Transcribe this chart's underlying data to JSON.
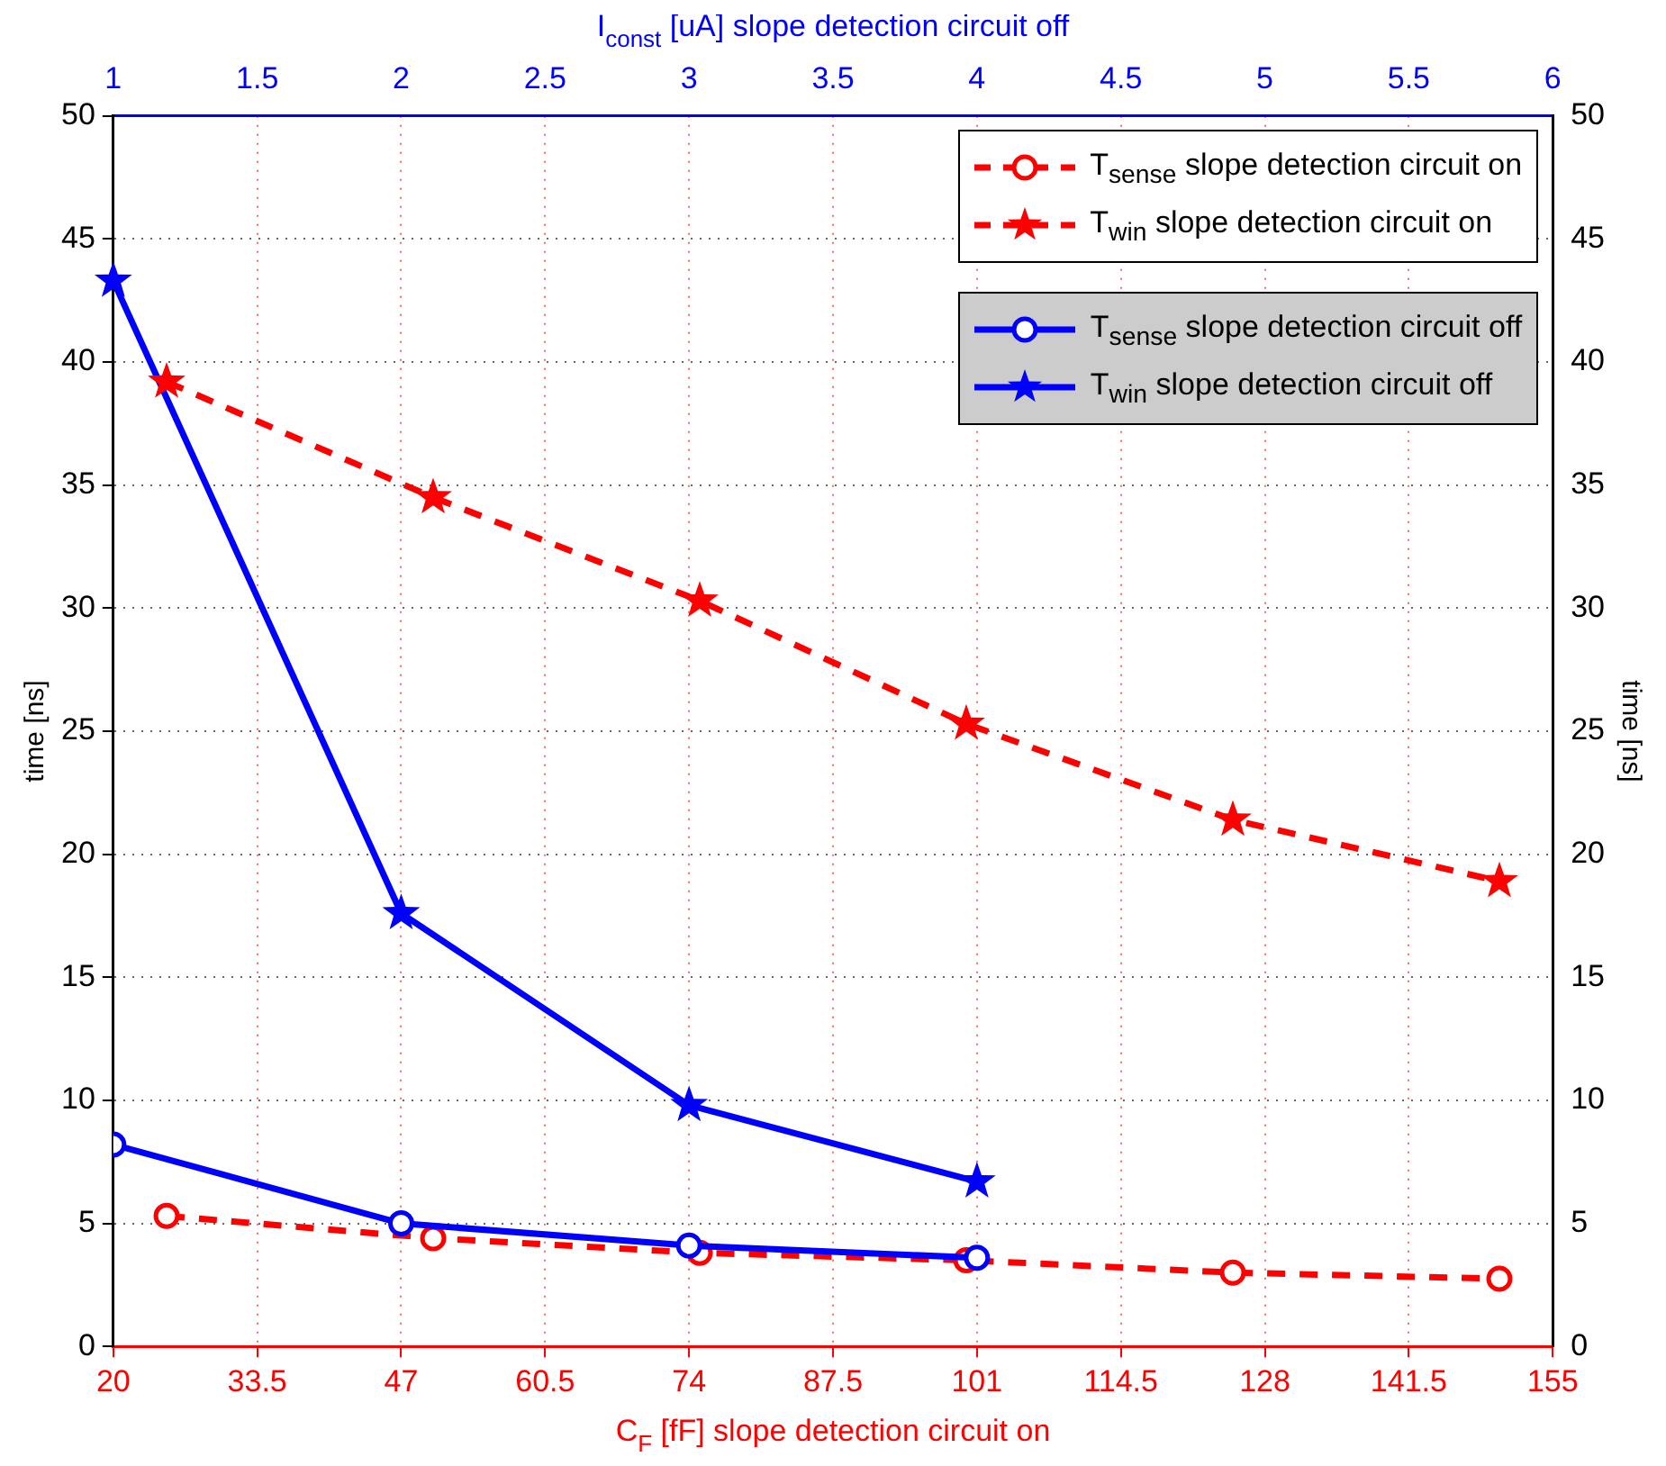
{
  "chart_data": {
    "type": "line",
    "xlabel": "C$_{F}$ [fF] slope detection circuit on",
    "x2label": "I$_{const}$ [uA] slope detection circuit off",
    "ylabel": "time [ns]",
    "y2label": "time [ns]",
    "xlim": [
      20,
      155
    ],
    "xticks": [
      20,
      33.5,
      47,
      60.5,
      74,
      87.5,
      101,
      114.5,
      128,
      141.5,
      155
    ],
    "x2lim": [
      1,
      6
    ],
    "x2ticks": [
      1,
      1.5,
      2,
      2.5,
      3,
      3.5,
      4,
      4.5,
      5,
      5.5,
      6
    ],
    "ylim": [
      0,
      50
    ],
    "yticks": [
      0,
      5,
      10,
      15,
      20,
      25,
      30,
      35,
      40,
      45,
      50
    ],
    "y2lim": [
      0,
      50
    ],
    "y2ticks": [
      0,
      5,
      10,
      15,
      20,
      25,
      30,
      35,
      40,
      45,
      50
    ],
    "grid": true,
    "legend": "top right",
    "series": [
      {
        "name": "T$_{sense}$ slope detection circuit on",
        "color": "#ff0000",
        "marker": "circle",
        "line_style": "dashed",
        "x": [
          25,
          50,
          75,
          100,
          125,
          150
        ],
        "values": [
          5.3,
          4.4,
          3.8,
          3.5,
          3.0,
          2.75
        ]
      },
      {
        "name": "T$_{win}$ slope detection circuit on",
        "color": "#ff0000",
        "marker": "star",
        "line_style": "dashed",
        "x": [
          25,
          50,
          75,
          100,
          125,
          150
        ],
        "values": [
          39.2,
          34.5,
          30.3,
          25.3,
          21.4,
          18.9
        ]
      },
      {
        "name": "T$_{sense}$ slope detection circuit off",
        "color": "#0000ff",
        "marker": "circle",
        "line_style": "solid",
        "axis": "x2",
        "x": [
          1,
          2,
          3,
          4
        ],
        "values": [
          8.2,
          5.0,
          4.1,
          3.6
        ]
      },
      {
        "name": "T$_{win}$ slope detection circuit off",
        "color": "#0000ff",
        "marker": "star",
        "line_style": "solid",
        "axis": "x2",
        "x": [
          1,
          2,
          3,
          4
        ],
        "values": [
          43.3,
          17.6,
          9.8,
          6.7
        ]
      }
    ]
  }
}
